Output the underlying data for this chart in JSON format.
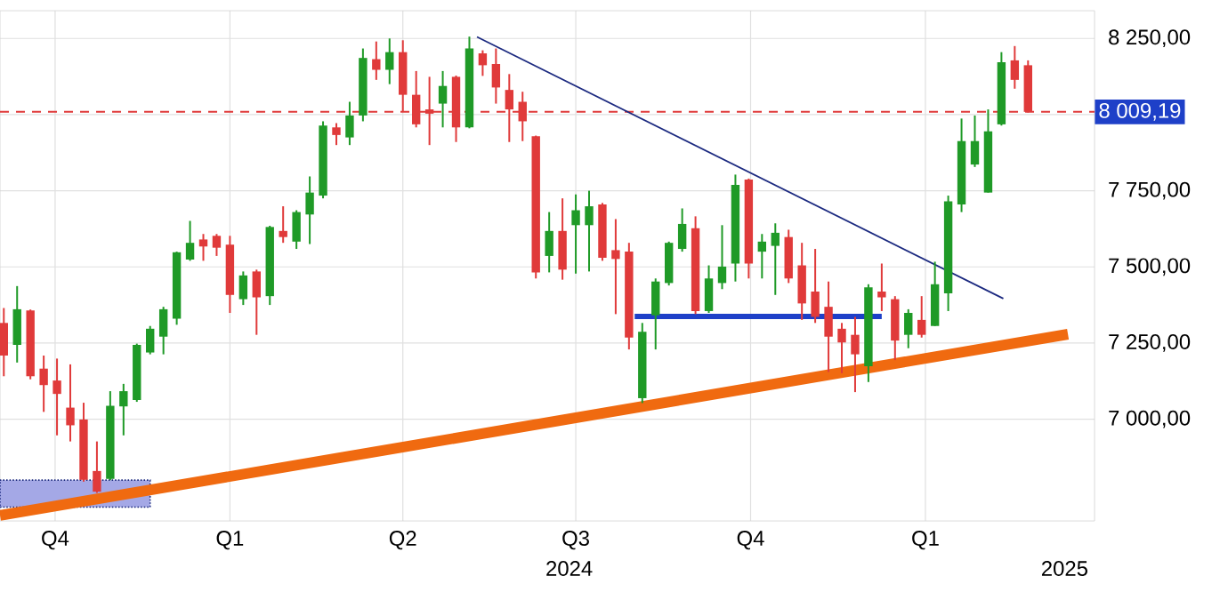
{
  "chart_data": {
    "type": "candlestick",
    "x": [
      "2023-09-04",
      "2023-09-11",
      "2023-09-18",
      "2023-09-25",
      "2023-10-02",
      "2023-10-09",
      "2023-10-16",
      "2023-10-23",
      "2023-10-30",
      "2023-11-06",
      "2023-11-13",
      "2023-11-20",
      "2023-11-27",
      "2023-12-04",
      "2023-12-11",
      "2023-12-18",
      "2023-12-25",
      "2024-01-01",
      "2024-01-08",
      "2024-01-15",
      "2024-01-22",
      "2024-01-29",
      "2024-02-05",
      "2024-02-12",
      "2024-02-19",
      "2024-02-26",
      "2024-03-04",
      "2024-03-11",
      "2024-03-18",
      "2024-03-25",
      "2024-04-01",
      "2024-04-08",
      "2024-04-15",
      "2024-04-22",
      "2024-04-29",
      "2024-05-06",
      "2024-05-13",
      "2024-05-20",
      "2024-05-27",
      "2024-06-03",
      "2024-06-10",
      "2024-06-17",
      "2024-06-24",
      "2024-07-01",
      "2024-07-08",
      "2024-07-15",
      "2024-07-22",
      "2024-07-29",
      "2024-08-05",
      "2024-08-12",
      "2024-08-19",
      "2024-08-26",
      "2024-09-02",
      "2024-09-09",
      "2024-09-16",
      "2024-09-23",
      "2024-09-30",
      "2024-10-07",
      "2024-10-14",
      "2024-10-21",
      "2024-10-28",
      "2024-11-04",
      "2024-11-11",
      "2024-11-18",
      "2024-11-25",
      "2024-12-02",
      "2024-12-09",
      "2024-12-16",
      "2024-12-23",
      "2024-12-30",
      "2025-01-06",
      "2025-01-13",
      "2025-01-20",
      "2025-01-27",
      "2025-02-03",
      "2025-02-10",
      "2025-02-17",
      "2025-02-24"
    ],
    "ohlc": [
      [
        7316,
        7365,
        7141,
        7209
      ],
      [
        7244,
        7437,
        7186,
        7361
      ],
      [
        7357,
        7360,
        7131,
        7141
      ],
      [
        7166,
        7209,
        7024,
        7112
      ],
      [
        7127,
        7199,
        6947,
        7083
      ],
      [
        7038,
        7180,
        6927,
        6980
      ],
      [
        6999,
        7054,
        6795,
        6801
      ],
      [
        6830,
        6927,
        6758,
        6762
      ],
      [
        6804,
        7092,
        6800,
        7044
      ],
      [
        7042,
        7116,
        6947,
        7092
      ],
      [
        7063,
        7248,
        7057,
        7244
      ],
      [
        7219,
        7306,
        7213,
        7297
      ],
      [
        7271,
        7369,
        7213,
        7361
      ],
      [
        7330,
        7550,
        7310,
        7548
      ],
      [
        7524,
        7651,
        7520,
        7579
      ],
      [
        7590,
        7608,
        7520,
        7567
      ],
      [
        7602,
        7608,
        7536,
        7563
      ],
      [
        7573,
        7602,
        7349,
        7408
      ],
      [
        7394,
        7485,
        7375,
        7472
      ],
      [
        7485,
        7491,
        7277,
        7400
      ],
      [
        7404,
        7635,
        7375,
        7631
      ],
      [
        7618,
        7699,
        7579,
        7598
      ],
      [
        7583,
        7686,
        7559,
        7680
      ],
      [
        7672,
        7797,
        7575,
        7744
      ],
      [
        7734,
        7978,
        7725,
        7964
      ],
      [
        7958,
        7972,
        7900,
        7933
      ],
      [
        7925,
        8042,
        7900,
        7997
      ],
      [
        7997,
        8217,
        7978,
        8186
      ],
      [
        8182,
        8240,
        8114,
        8147
      ],
      [
        8147,
        8250,
        8100,
        8205
      ],
      [
        8205,
        8244,
        8011,
        8065
      ],
      [
        8065,
        8143,
        7958,
        7968
      ],
      [
        8017,
        8124,
        7900,
        8003
      ],
      [
        8036,
        8143,
        7958,
        8094
      ],
      [
        8124,
        8128,
        7910,
        7958
      ],
      [
        7958,
        8256,
        7955,
        8217
      ],
      [
        8201,
        8211,
        8127,
        8162
      ],
      [
        8166,
        8217,
        8036,
        8089
      ],
      [
        8081,
        8133,
        7910,
        8017
      ],
      [
        8042,
        8075,
        7913,
        7978
      ],
      [
        7929,
        7931,
        7462,
        7482
      ],
      [
        7536,
        7680,
        7482,
        7618
      ],
      [
        7618,
        7725,
        7458,
        7491
      ],
      [
        7637,
        7738,
        7478,
        7686
      ],
      [
        7637,
        7750,
        7485,
        7699
      ],
      [
        7705,
        7710,
        7520,
        7530
      ],
      [
        7555,
        7657,
        7345,
        7526
      ],
      [
        7550,
        7579,
        7229,
        7268
      ],
      [
        7069,
        7316,
        7053,
        7287
      ],
      [
        7341,
        7462,
        7229,
        7452
      ],
      [
        7447,
        7583,
        7439,
        7579
      ],
      [
        7559,
        7692,
        7550,
        7641
      ],
      [
        7627,
        7666,
        7345,
        7355
      ],
      [
        7355,
        7505,
        7349,
        7462
      ],
      [
        7447,
        7637,
        7427,
        7501
      ],
      [
        7511,
        7803,
        7452,
        7769
      ],
      [
        7787,
        7790,
        7462,
        7511
      ],
      [
        7550,
        7608,
        7462,
        7583
      ],
      [
        7569,
        7643,
        7408,
        7612
      ],
      [
        7598,
        7622,
        7447,
        7462
      ],
      [
        7505,
        7579,
        7326,
        7380
      ],
      [
        7419,
        7559,
        7316,
        7336
      ],
      [
        7369,
        7452,
        7155,
        7271
      ],
      [
        7297,
        7316,
        7151,
        7252
      ],
      [
        7277,
        7336,
        7089,
        7213
      ],
      [
        7174,
        7443,
        7122,
        7433
      ],
      [
        7419,
        7511,
        7355,
        7400
      ],
      [
        7394,
        7404,
        7194,
        7258
      ],
      [
        7277,
        7361,
        7233,
        7349
      ],
      [
        7326,
        7404,
        7268,
        7277
      ],
      [
        7306,
        7517,
        7306,
        7443
      ],
      [
        7413,
        7734,
        7355,
        7715
      ],
      [
        7705,
        7987,
        7680,
        7913
      ],
      [
        7836,
        7997,
        7828,
        7913
      ],
      [
        7744,
        8017,
        7744,
        7945
      ],
      [
        7968,
        8205,
        7964,
        8172
      ],
      [
        8178,
        8225,
        8085,
        8114
      ],
      [
        8162,
        8178,
        8007,
        8009
      ]
    ],
    "series": [
      {
        "type": "line",
        "x": [
          "2024-05-10",
          "2025-02-11"
        ],
        "values": [
          8255,
          7396
        ],
        "color": "#1c2a80"
      },
      {
        "type": "line",
        "x": [
          "2024-08-01",
          "2024-12-09"
        ],
        "values": [
          7337,
          7337
        ],
        "color": "#1e40c8"
      },
      {
        "type": "line",
        "x": [
          "2023-09-02",
          "2025-03-17"
        ],
        "values": [
          6684,
          7279
        ],
        "color": "#f06a10"
      }
    ],
    "xlim": [
      "2023-09-02",
      "2025-03-31"
    ],
    "ylim": [
      6666,
      8341
    ],
    "xticks": [
      {
        "value": "2023-10-01",
        "label": "Q4"
      },
      {
        "value": "2024-01-01",
        "label": "Q1"
      },
      {
        "value": "2024-04-01",
        "label": "Q2"
      },
      {
        "value": "2024-07-01",
        "label": "Q3"
      },
      {
        "value": "2024-10-01",
        "label": "Q4"
      },
      {
        "value": "2025-01-01",
        "label": "Q1"
      }
    ],
    "yticks": [
      {
        "value": 7000,
        "label": "7 000,00"
      },
      {
        "value": 7250,
        "label": "7 250,00"
      },
      {
        "value": 7500,
        "label": "7 500,00"
      },
      {
        "value": 7750,
        "label": "7 750,00"
      },
      {
        "value": 8000,
        "label": null
      },
      {
        "value": 8250,
        "label": "8 250,00"
      }
    ],
    "grid": true,
    "ref_lines": [
      {
        "axis": "y",
        "value": 8009.19,
        "label": "8 009,19",
        "color": "#e03a3a",
        "line_style": "dashed"
      }
    ],
    "bands": [
      {
        "axis": "x",
        "from": "2023-09-02",
        "to": "2023-11-20",
        "color": "#a4a8e6"
      }
    ],
    "annotations": [
      "2024",
      "2025"
    ]
  }
}
